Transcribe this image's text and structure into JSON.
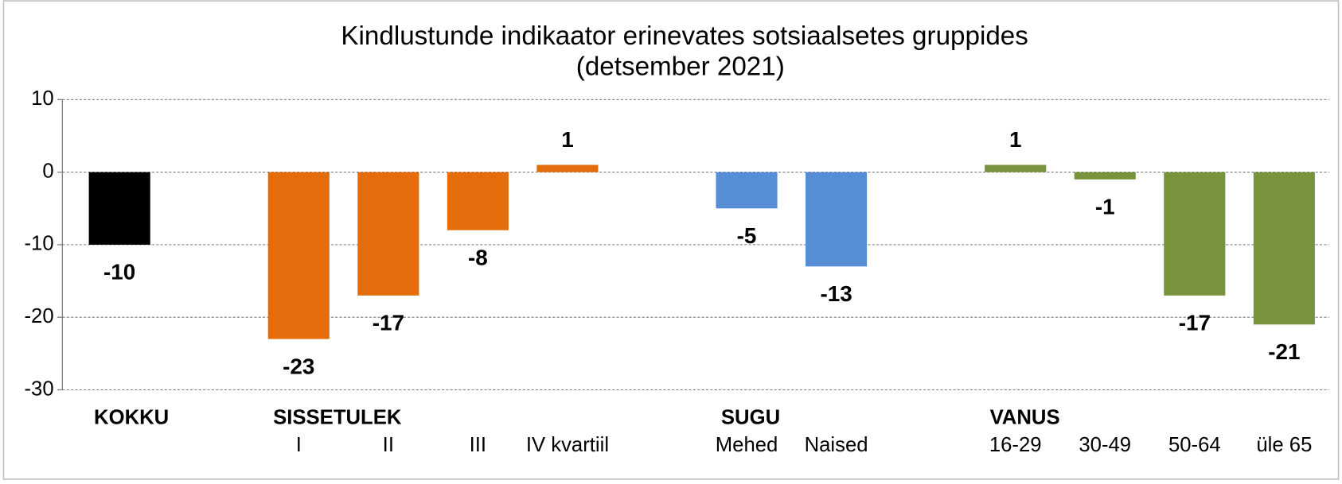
{
  "chart_data": {
    "type": "bar",
    "title": "Kindlustunde  indikaator erinevates sotsiaalsetes gruppides",
    "subtitle": "(detsember 2021)",
    "category_groups": [
      "KOKKU",
      null,
      "SISSETULEK",
      null,
      null,
      null,
      null,
      "SUGU",
      null,
      null,
      "VANUS",
      null,
      null,
      null
    ],
    "categories": [
      null,
      null,
      "I",
      "II",
      "III",
      "IV kvartiil",
      null,
      "Mehed",
      "Naised",
      null,
      "16-29",
      "30-49",
      "50-64",
      "üle 65"
    ],
    "values": [
      -10,
      null,
      -23,
      -17,
      -8,
      1,
      null,
      -5,
      -13,
      null,
      1,
      -1,
      -17,
      -21
    ],
    "colors": [
      "#000000",
      null,
      "#E46C0A",
      "#E46C0A",
      "#E46C0A",
      "#E46C0A",
      null,
      "#558ED5",
      "#558ED5",
      null,
      "#77933C",
      "#77933C",
      "#77933C",
      "#77933C"
    ],
    "ylim": [
      -30,
      10
    ],
    "yticks": [
      -30,
      -20,
      -10,
      0,
      10
    ],
    "grid": true
  }
}
